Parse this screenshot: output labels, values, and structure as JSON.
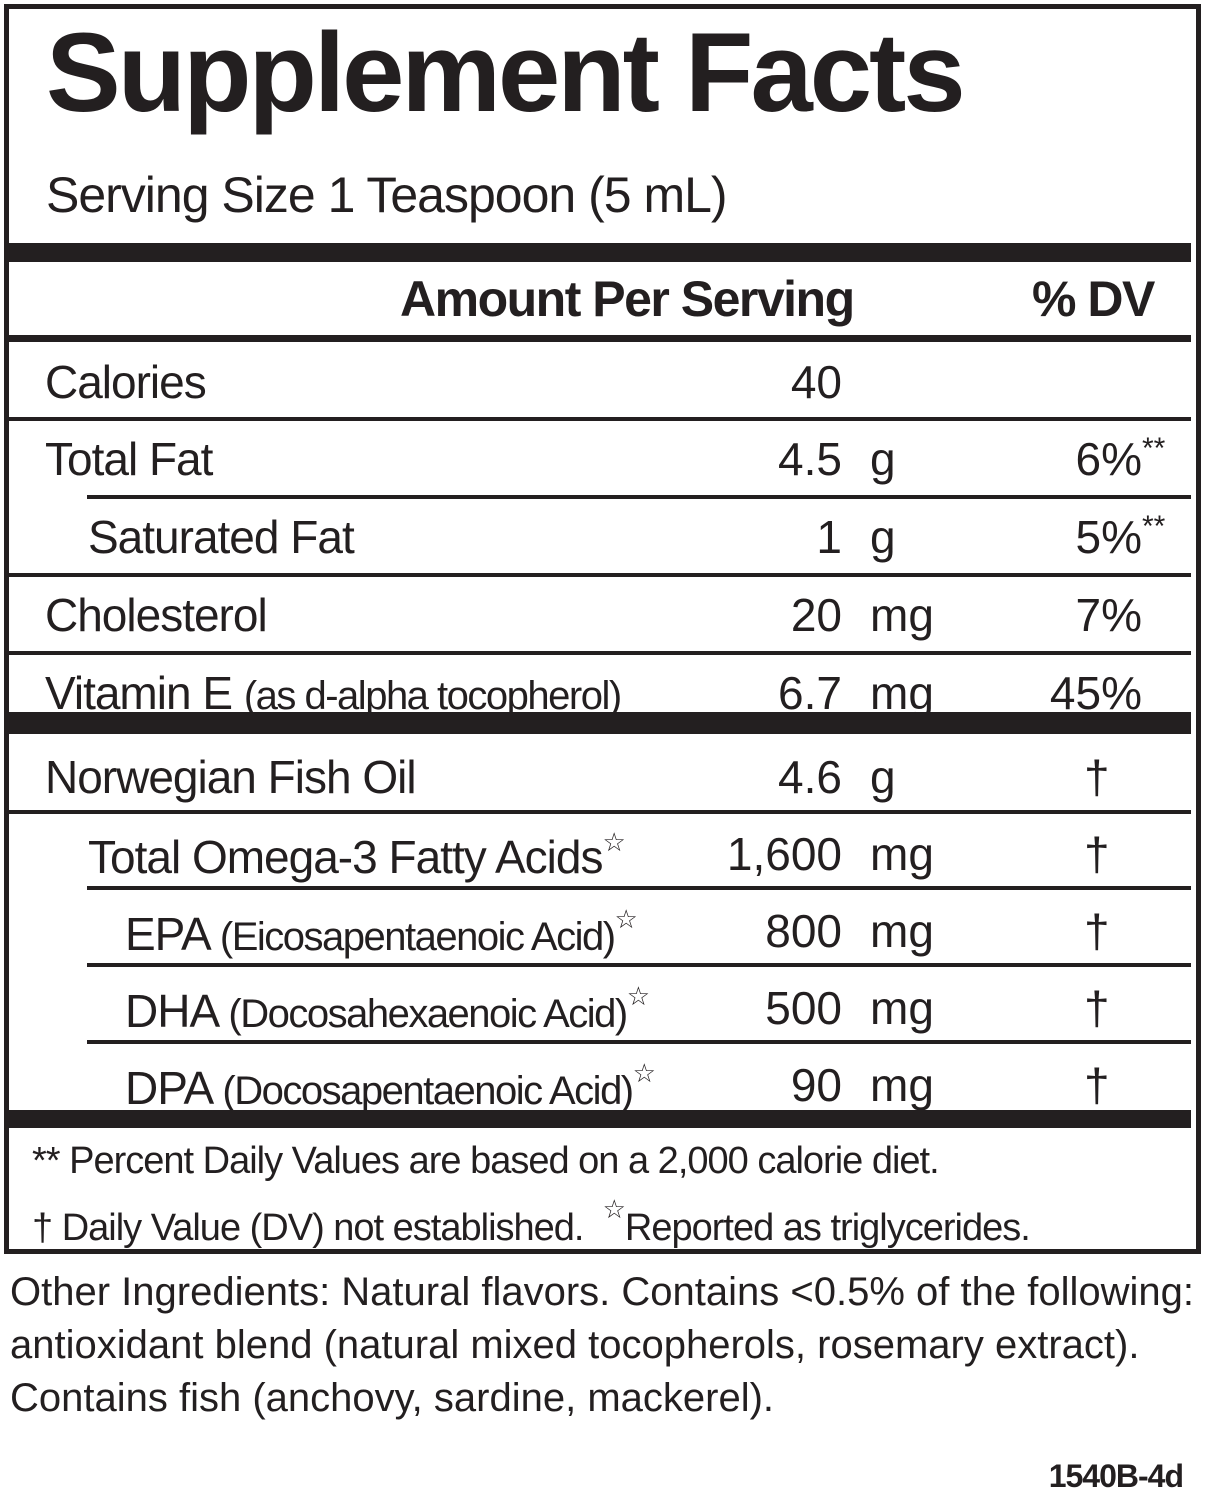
{
  "title": "Supplement Facts",
  "serving_size": "Serving Size 1 Teaspoon (5 mL)",
  "header": {
    "amount": "Amount Per Serving",
    "dv": "% DV"
  },
  "nutrients": [
    {
      "label": "Calories",
      "sub": "",
      "amount": "40",
      "unit": "",
      "dv": "",
      "dv_mark": ""
    },
    {
      "label": "Total Fat",
      "sub": "",
      "amount": "4.5",
      "unit": "g",
      "dv": "6%",
      "dv_mark": "**"
    },
    {
      "label": "Saturated Fat",
      "sub": "",
      "amount": "1",
      "unit": "g",
      "dv": "5%",
      "dv_mark": "**"
    },
    {
      "label": "Cholesterol",
      "sub": "",
      "amount": "20",
      "unit": "mg",
      "dv": "7%",
      "dv_mark": ""
    },
    {
      "label": "Vitamin E",
      "sub": "(as d-alpha tocopherol)",
      "amount": "6.7",
      "unit": "mg",
      "dv": "45%",
      "dv_mark": ""
    }
  ],
  "ingredients": [
    {
      "label": "Norwegian Fish Oil",
      "sub": "",
      "star": "",
      "amount": "4.6",
      "unit": "g",
      "dv": "†"
    },
    {
      "label": "Total Omega-3 Fatty Acids",
      "sub": "",
      "star": "☆",
      "amount": "1,600",
      "unit": "mg",
      "dv": "†"
    },
    {
      "label": "EPA",
      "sub": "(Eicosapentaenoic Acid)",
      "star": "☆",
      "amount": "800",
      "unit": "mg",
      "dv": "†"
    },
    {
      "label": "DHA",
      "sub": "(Docosahexaenoic Acid)",
      "star": "☆",
      "amount": "500",
      "unit": "mg",
      "dv": "†"
    },
    {
      "label": "DPA",
      "sub": "(Docosapentaenoic Acid)",
      "star": "☆",
      "amount": "90",
      "unit": "mg",
      "dv": "†"
    }
  ],
  "footnotes": {
    "line1": "** Percent Daily Values are based on a 2,000 calorie diet.",
    "line2a": "† Daily Value (DV) not established.",
    "star": "☆",
    "line2b": "Reported as triglycerides."
  },
  "other_ingredients": "Other Ingredients: Natural flavors. Contains <0.5% of the following: antioxidant blend (natural mixed tocopherols, rosemary extract). Contains fish (anchovy, sardine, mackerel).",
  "code": "1540B-4d"
}
